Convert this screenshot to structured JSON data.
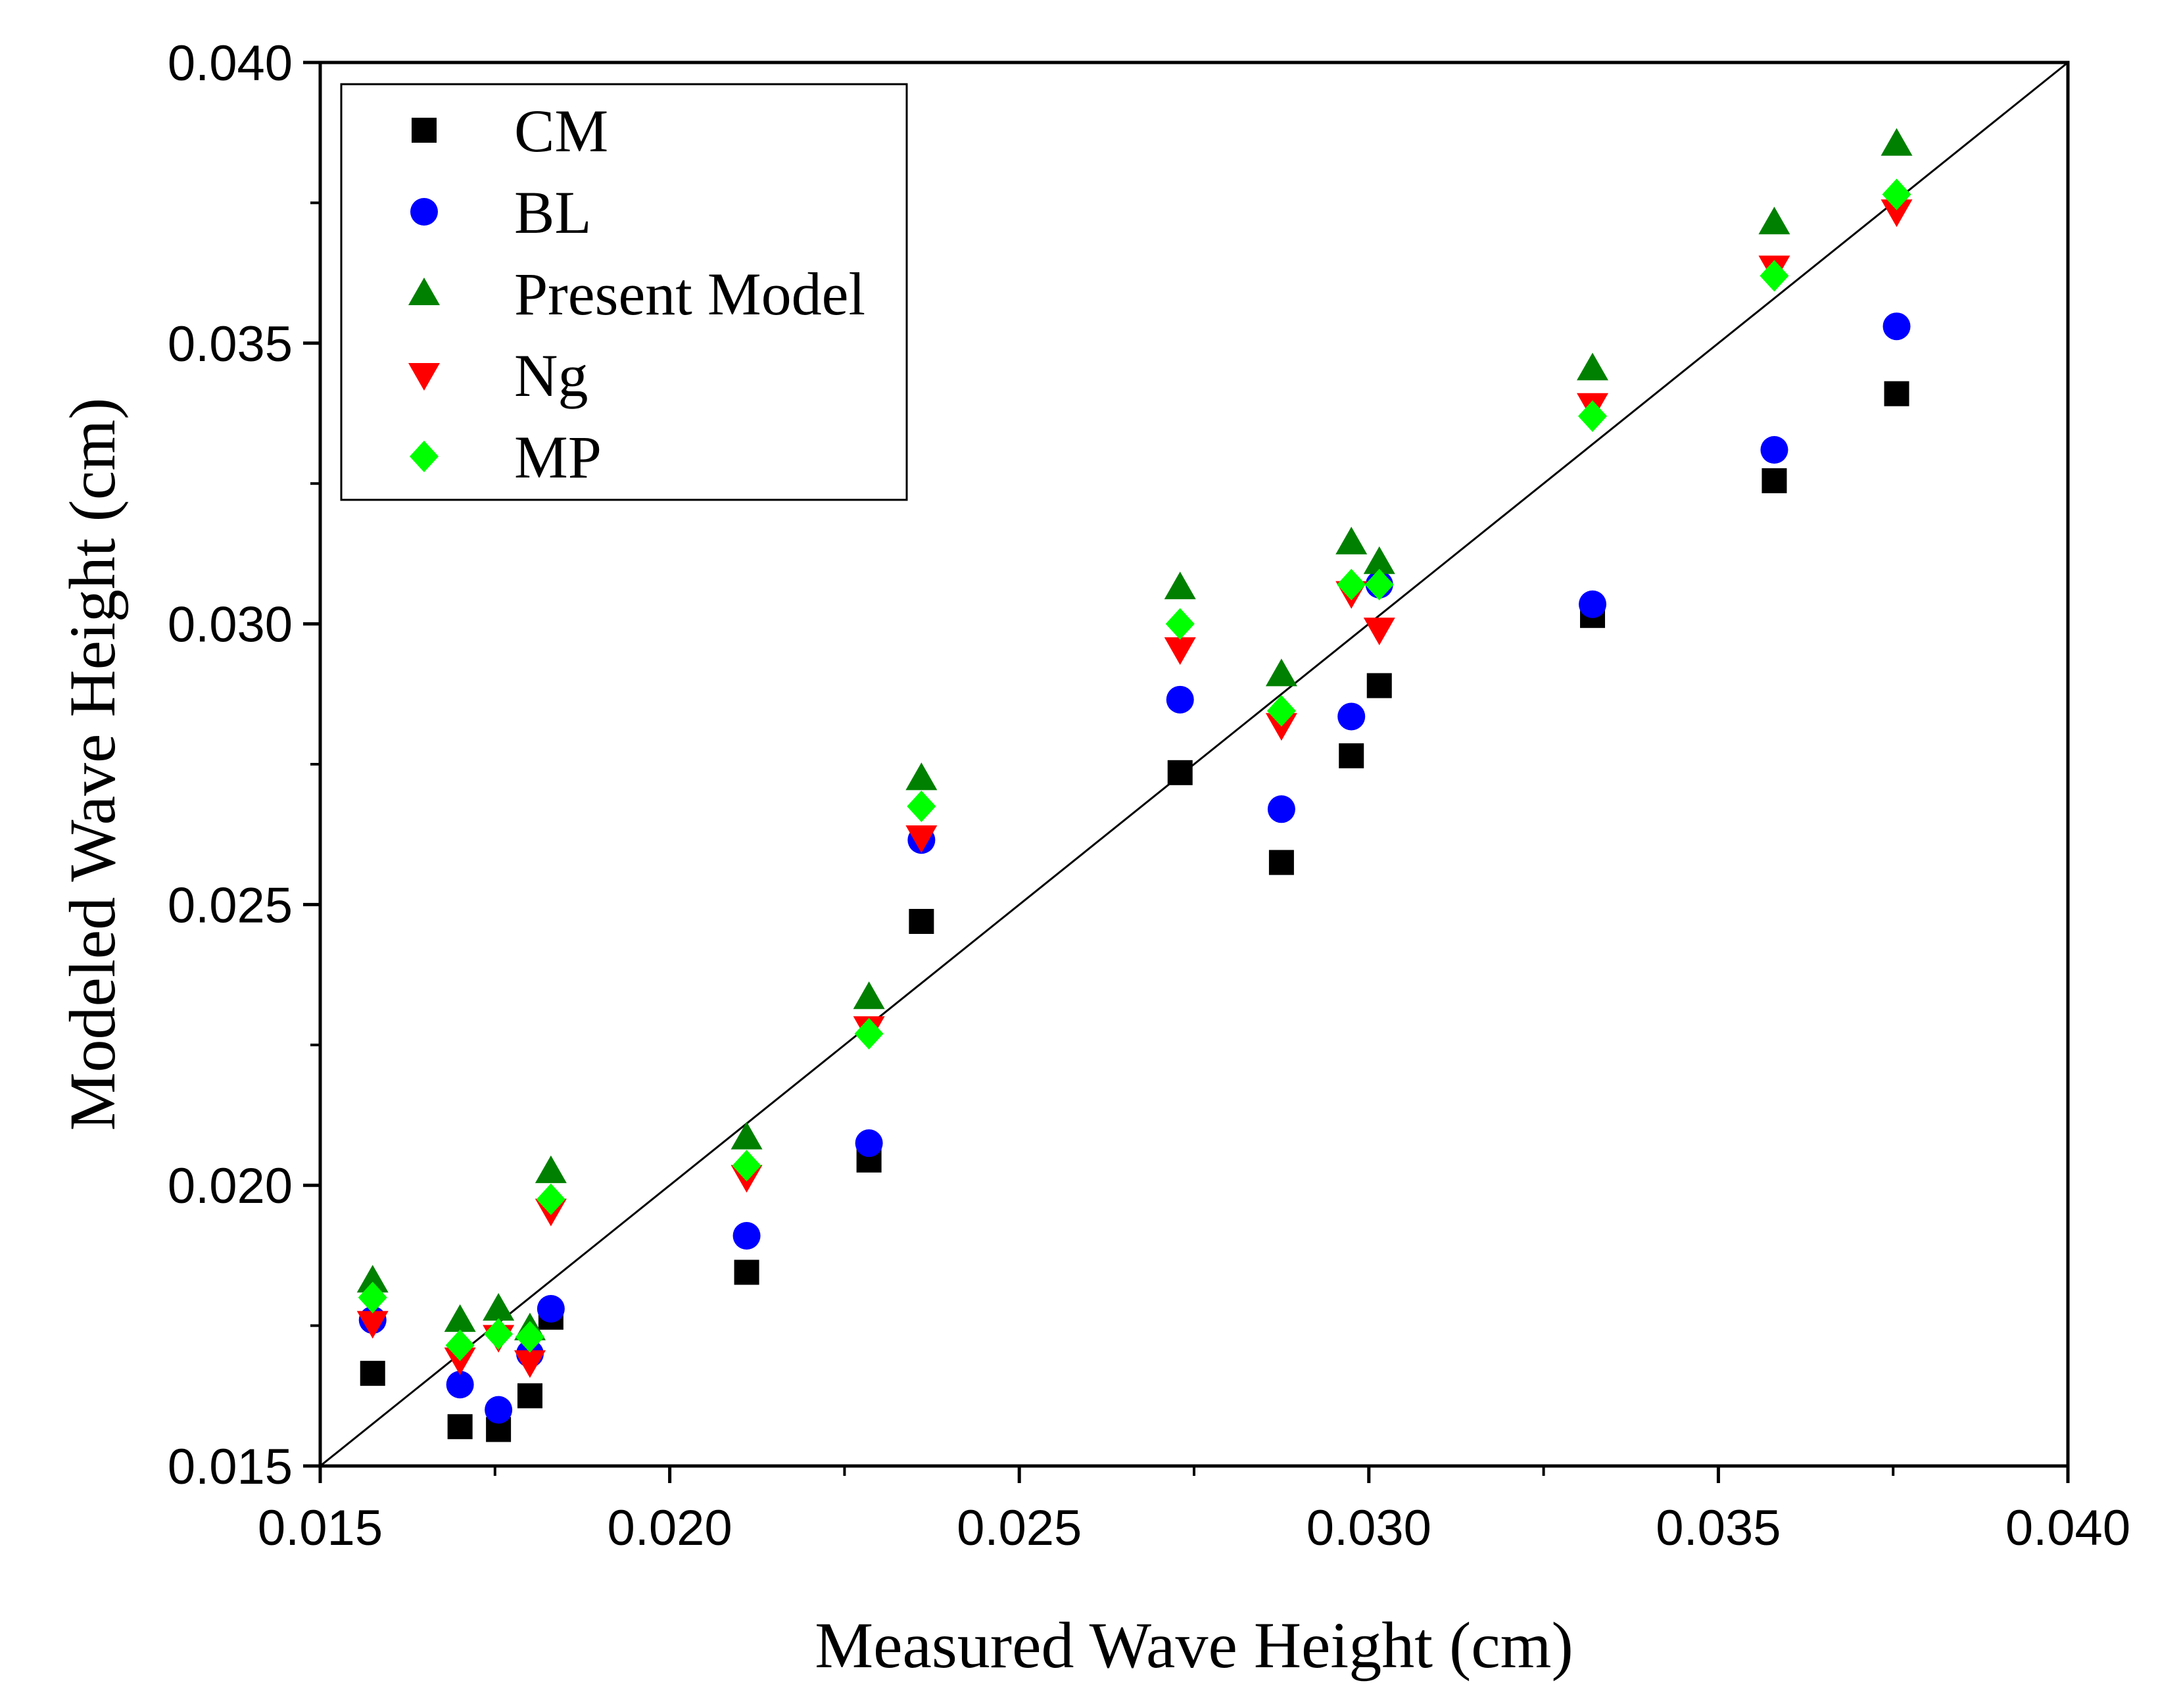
{
  "chart_data": {
    "type": "scatter",
    "title": "",
    "xlabel": "Measured Wave Height (cm)",
    "ylabel": "Modeled Wave Height (cm)",
    "xlim": [
      0.015,
      0.04
    ],
    "ylim": [
      0.015,
      0.04
    ],
    "xticks": [
      "0.015",
      "0.020",
      "0.025",
      "0.030",
      "0.035",
      "0.040"
    ],
    "yticks": [
      "0.015",
      "0.020",
      "0.025",
      "0.030",
      "0.035",
      "0.040"
    ],
    "x_minor_step": 0.0025,
    "y_minor_step": 0.0025,
    "grid": false,
    "legend_position": "top-left",
    "reference_line": "y = x",
    "x": [
      0.01575,
      0.017,
      0.01755,
      0.018,
      0.0183,
      0.0211,
      0.02285,
      0.0236,
      0.0273,
      0.02875,
      0.02975,
      0.03015,
      0.0332,
      0.0358,
      0.03755
    ],
    "series": [
      {
        "name": "CM",
        "marker": "square",
        "color": "#000000",
        "values": [
          0.01665,
          0.0157,
          0.01565,
          0.01625,
          0.01765,
          0.01845,
          0.02045,
          0.0247,
          0.02735,
          0.02575,
          0.02765,
          0.0289,
          0.03015,
          0.03255,
          0.0341
        ]
      },
      {
        "name": "BL",
        "marker": "circle",
        "color": "#0000ff",
        "values": [
          0.0176,
          0.01645,
          0.016,
          0.017,
          0.0178,
          0.0191,
          0.02075,
          0.02615,
          0.02865,
          0.0267,
          0.02835,
          0.0307,
          0.03035,
          0.0331,
          0.0353
        ]
      },
      {
        "name": "Present Model",
        "marker": "triangle-up",
        "color": "#008000",
        "values": [
          0.0183,
          0.0176,
          0.0178,
          0.01745,
          0.02025,
          0.02085,
          0.02335,
          0.02725,
          0.03065,
          0.0291,
          0.03145,
          0.0311,
          0.03455,
          0.03715,
          0.03855
        ]
      },
      {
        "name": "Ng",
        "marker": "triangle-down",
        "color": "#ff0000",
        "values": [
          0.01755,
          0.0169,
          0.0173,
          0.01685,
          0.01955,
          0.02015,
          0.0228,
          0.0262,
          0.02955,
          0.0282,
          0.03055,
          0.0299,
          0.0339,
          0.03635,
          0.03735
        ]
      },
      {
        "name": "MP",
        "marker": "diamond",
        "color": "#00ff00",
        "values": [
          0.018,
          0.01715,
          0.01735,
          0.0173,
          0.01975,
          0.02035,
          0.0227,
          0.02675,
          0.03,
          0.02845,
          0.0307,
          0.0307,
          0.0337,
          0.0362,
          0.03765
        ]
      }
    ]
  }
}
